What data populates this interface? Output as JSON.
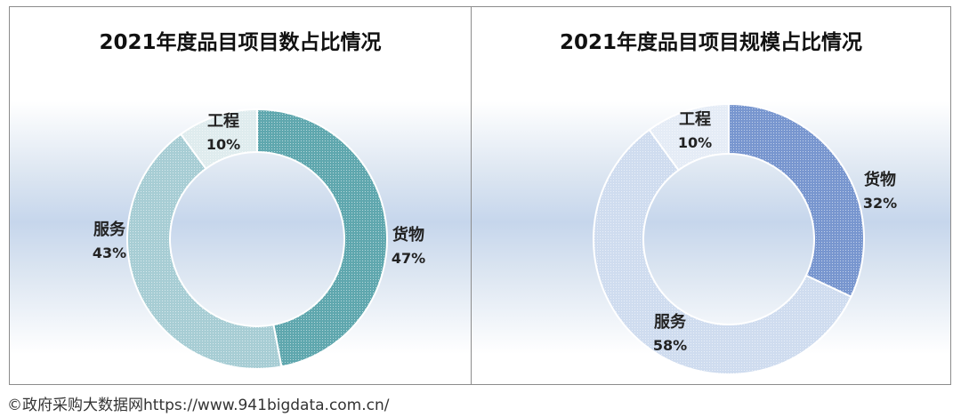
{
  "chart_data": [
    {
      "type": "pie",
      "title": "2021年度品目项目数占比情况",
      "slices": [
        {
          "name": "货物",
          "label": "47%",
          "value": 47,
          "color": "#5fa7ae"
        },
        {
          "name": "服务",
          "label": "43%",
          "value": 43,
          "color": "#a7cdd4"
        },
        {
          "name": "工程",
          "label": "10%",
          "value": 10,
          "color": "#dfecee"
        }
      ]
    },
    {
      "type": "pie",
      "title": "2021年度品目项目规模占比情况",
      "slices": [
        {
          "name": "货物",
          "label": "32%",
          "value": 32,
          "color": "#7896cf"
        },
        {
          "name": "服务",
          "label": "58%",
          "value": 58,
          "color": "#cfdcef"
        },
        {
          "name": "工程",
          "label": "10%",
          "value": 10,
          "color": "#e5ecf6"
        }
      ]
    }
  ],
  "footer": "©政府采购大数据网https://www.941bigdata.com.cn/"
}
